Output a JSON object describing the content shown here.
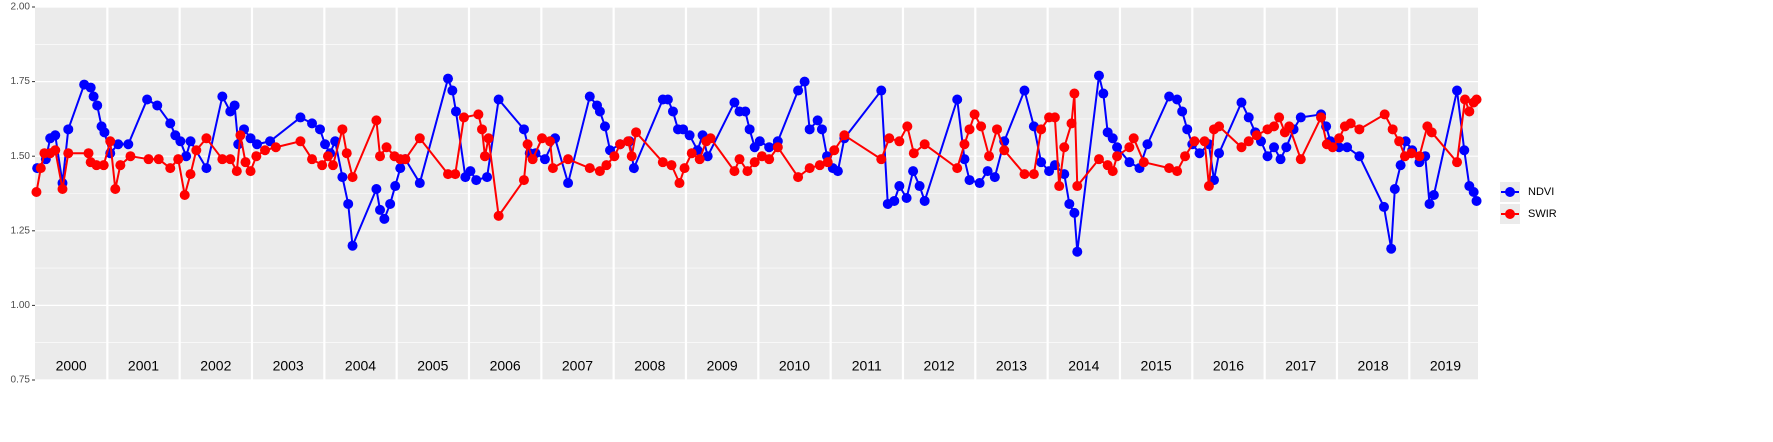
{
  "chart_data": {
    "type": "line",
    "xlim": [
      2000,
      2019.95
    ],
    "ylim": [
      0.75,
      2.0
    ],
    "yticks": [
      0.75,
      {
        "value": 1.0,
        "label": "1.00"
      },
      1.25,
      {
        "value": 1.5,
        "label": "1.50"
      },
      1.75,
      {
        "value": 2.0,
        "label": "2.00"
      }
    ],
    "y_minor_grid": [
      0.875,
      1.125,
      1.375,
      1.625,
      1.875
    ],
    "x_grid": [
      2001,
      2002,
      2003,
      2004,
      2005,
      2006,
      2007,
      2008,
      2009,
      2010,
      2011,
      2012,
      2013,
      2014,
      2015,
      2016,
      2017,
      2018,
      2019
    ],
    "xticks": [
      {
        "value": 2000.5,
        "label": "2000"
      },
      {
        "value": 2001.5,
        "label": "2001"
      },
      {
        "value": 2002.5,
        "label": "2002"
      },
      {
        "value": 2003.5,
        "label": "2003"
      },
      {
        "value": 2004.5,
        "label": "2004"
      },
      {
        "value": 2005.5,
        "label": "2005"
      },
      {
        "value": 2006.5,
        "label": "2006"
      },
      {
        "value": 2007.5,
        "label": "2007"
      },
      {
        "value": 2008.5,
        "label": "2008"
      },
      {
        "value": 2009.5,
        "label": "2009"
      },
      {
        "value": 2010.5,
        "label": "2010"
      },
      {
        "value": 2011.5,
        "label": "2011"
      },
      {
        "value": 2012.5,
        "label": "2012"
      },
      {
        "value": 2013.5,
        "label": "2013"
      },
      {
        "value": 2014.5,
        "label": "2014"
      },
      {
        "value": 2015.5,
        "label": "2015"
      },
      {
        "value": 2016.5,
        "label": "2016"
      },
      {
        "value": 2017.5,
        "label": "2017"
      },
      {
        "value": 2018.5,
        "label": "2018"
      },
      {
        "value": 2019.5,
        "label": "2019"
      }
    ],
    "grid": true,
    "legend": "right",
    "series": [
      {
        "name": "NDVI",
        "color": "#0000ff",
        "x": [
          2000.03,
          2000.15,
          2000.21,
          2000.28,
          2000.38,
          2000.46,
          2000.68,
          2000.77,
          2000.81,
          2000.86,
          2000.92,
          2000.96,
          2001.04,
          2001.15,
          2001.29,
          2001.55,
          2001.69,
          2001.87,
          2001.94,
          2002.01,
          2002.09,
          2002.15,
          2002.37,
          2002.59,
          2002.7,
          2002.76,
          2002.81,
          2002.89,
          2002.98,
          2003.07,
          2003.25,
          2003.67,
          2003.83,
          2003.94,
          2004.01,
          2004.08,
          2004.15,
          2004.25,
          2004.33,
          2004.39,
          2004.72,
          2004.77,
          2004.83,
          2004.91,
          2004.98,
          2005.05,
          2005.12,
          2005.32,
          2005.71,
          2005.77,
          2005.82,
          2005.95,
          2006.02,
          2006.1,
          2006.25,
          2006.41,
          2006.76,
          2006.84,
          2006.92,
          2007.05,
          2007.19,
          2007.37,
          2007.67,
          2007.77,
          2007.81,
          2007.88,
          2007.95,
          2008.09,
          2008.22,
          2008.28,
          2008.68,
          2008.75,
          2008.82,
          2008.89,
          2008.96,
          2009.05,
          2009.16,
          2009.23,
          2009.3,
          2009.67,
          2009.74,
          2009.82,
          2009.88,
          2009.95,
          2010.02,
          2010.15,
          2010.27,
          2010.55,
          2010.64,
          2010.71,
          2010.82,
          2010.88,
          2010.95,
          2011.03,
          2011.1,
          2011.19,
          2011.7,
          2011.79,
          2011.88,
          2011.95,
          2012.05,
          2012.14,
          2012.23,
          2012.3,
          2012.75,
          2012.85,
          2012.92,
          2013.06,
          2013.17,
          2013.27,
          2013.4,
          2013.68,
          2013.81,
          2013.91,
          2014.02,
          2014.1,
          2014.23,
          2014.3,
          2014.37,
          2014.41,
          2014.71,
          2014.77,
          2014.83,
          2014.9,
          2014.96,
          2015.13,
          2015.27,
          2015.38,
          2015.68,
          2015.79,
          2015.86,
          2015.93,
          2016.0,
          2016.1,
          2016.23,
          2016.3,
          2016.37,
          2016.68,
          2016.78,
          2016.87,
          2016.95,
          2017.04,
          2017.13,
          2017.22,
          2017.3,
          2017.4,
          2017.5,
          2017.78,
          2017.85,
          2017.91,
          2018.03,
          2018.14,
          2018.31,
          2018.65,
          2018.75,
          2018.8,
          2018.88,
          2018.95,
          2019.04,
          2019.14,
          2019.22,
          2019.28,
          2019.34,
          2019.66,
          2019.76,
          2019.83,
          2019.89,
          2019.93
        ],
        "values": [
          1.46,
          1.49,
          1.56,
          1.57,
          1.41,
          1.59,
          1.74,
          1.73,
          1.7,
          1.67,
          1.6,
          1.58,
          1.51,
          1.54,
          1.54,
          1.69,
          1.67,
          1.61,
          1.57,
          1.55,
          1.5,
          1.55,
          1.46,
          1.7,
          1.65,
          1.67,
          1.54,
          1.59,
          1.56,
          1.54,
          1.55,
          1.63,
          1.61,
          1.59,
          1.54,
          1.51,
          1.55,
          1.43,
          1.34,
          1.2,
          1.39,
          1.32,
          1.29,
          1.34,
          1.4,
          1.46,
          1.49,
          1.41,
          1.76,
          1.72,
          1.65,
          1.43,
          1.45,
          1.42,
          1.43,
          1.69,
          1.59,
          1.51,
          1.51,
          1.49,
          1.56,
          1.41,
          1.7,
          1.67,
          1.65,
          1.6,
          1.52,
          1.54,
          1.55,
          1.46,
          1.69,
          1.69,
          1.65,
          1.59,
          1.59,
          1.57,
          1.52,
          1.57,
          1.5,
          1.68,
          1.65,
          1.65,
          1.59,
          1.53,
          1.55,
          1.53,
          1.55,
          1.72,
          1.75,
          1.59,
          1.62,
          1.59,
          1.5,
          1.46,
          1.45,
          1.56,
          1.72,
          1.34,
          1.35,
          1.4,
          1.36,
          1.45,
          1.4,
          1.35,
          1.69,
          1.49,
          1.42,
          1.41,
          1.45,
          1.43,
          1.55,
          1.72,
          1.6,
          1.48,
          1.45,
          1.47,
          1.44,
          1.34,
          1.31,
          1.18,
          1.77,
          1.71,
          1.58,
          1.56,
          1.53,
          1.48,
          1.46,
          1.54,
          1.7,
          1.69,
          1.65,
          1.59,
          1.54,
          1.51,
          1.54,
          1.42,
          1.51,
          1.68,
          1.63,
          1.58,
          1.55,
          1.5,
          1.53,
          1.49,
          1.53,
          1.59,
          1.63,
          1.64,
          1.6,
          1.55,
          1.53,
          1.53,
          1.5,
          1.33,
          1.19,
          1.39,
          1.47,
          1.55,
          1.52,
          1.48,
          1.5,
          1.34,
          1.37,
          1.72,
          1.52,
          1.4,
          1.38,
          1.35
        ]
      },
      {
        "name": "SWIR",
        "color": "#ff0000",
        "x": [
          2000.02,
          2000.08,
          2000.13,
          2000.21,
          2000.28,
          2000.38,
          2000.46,
          2000.74,
          2000.77,
          2000.85,
          2000.95,
          2001.04,
          2001.11,
          2001.18,
          2001.32,
          2001.57,
          2001.71,
          2001.87,
          2001.98,
          2002.07,
          2002.15,
          2002.23,
          2002.37,
          2002.59,
          2002.7,
          2002.79,
          2002.84,
          2002.91,
          2002.98,
          2003.06,
          2003.18,
          2003.33,
          2003.67,
          2003.83,
          2003.97,
          2004.05,
          2004.12,
          2004.25,
          2004.31,
          2004.39,
          2004.72,
          2004.77,
          2004.86,
          2004.97,
          2005.05,
          2005.12,
          2005.32,
          2005.71,
          2005.81,
          2005.93,
          2006.13,
          2006.18,
          2006.22,
          2006.27,
          2006.41,
          2006.76,
          2006.81,
          2006.88,
          2007.01,
          2007.12,
          2007.16,
          2007.37,
          2007.67,
          2007.81,
          2007.9,
          2008.01,
          2008.09,
          2008.2,
          2008.25,
          2008.31,
          2008.68,
          2008.8,
          2008.91,
          2008.98,
          2009.08,
          2009.19,
          2009.28,
          2009.34,
          2009.67,
          2009.74,
          2009.85,
          2009.95,
          2010.05,
          2010.15,
          2010.27,
          2010.55,
          2010.71,
          2010.85,
          2010.96,
          2011.05,
          2011.19,
          2011.7,
          2011.81,
          2011.95,
          2012.06,
          2012.15,
          2012.3,
          2012.75,
          2012.85,
          2012.92,
          2012.99,
          2013.08,
          2013.19,
          2013.3,
          2013.4,
          2013.68,
          2013.81,
          2013.91,
          2014.02,
          2014.1,
          2014.16,
          2014.23,
          2014.33,
          2014.37,
          2014.41,
          2014.71,
          2014.83,
          2014.9,
          2014.96,
          2015.13,
          2015.19,
          2015.33,
          2015.68,
          2015.79,
          2015.9,
          2016.03,
          2016.17,
          2016.23,
          2016.3,
          2016.37,
          2016.68,
          2016.78,
          2016.89,
          2017.04,
          2017.13,
          2017.2,
          2017.28,
          2017.34,
          2017.5,
          2017.78,
          2017.86,
          2017.94,
          2018.03,
          2018.11,
          2018.19,
          2018.31,
          2018.66,
          2018.77,
          2018.86,
          2018.94,
          2019.03,
          2019.14,
          2019.25,
          2019.31,
          2019.66,
          2019.77,
          2019.83,
          2019.89,
          2019.93
        ],
        "values": [
          1.38,
          1.46,
          1.51,
          1.51,
          1.52,
          1.39,
          1.51,
          1.51,
          1.48,
          1.47,
          1.47,
          1.55,
          1.39,
          1.47,
          1.5,
          1.49,
          1.49,
          1.46,
          1.49,
          1.37,
          1.44,
          1.52,
          1.56,
          1.49,
          1.49,
          1.45,
          1.57,
          1.48,
          1.45,
          1.5,
          1.52,
          1.53,
          1.55,
          1.49,
          1.47,
          1.5,
          1.47,
          1.59,
          1.51,
          1.43,
          1.62,
          1.5,
          1.53,
          1.5,
          1.49,
          1.49,
          1.56,
          1.44,
          1.44,
          1.63,
          1.64,
          1.59,
          1.5,
          1.56,
          1.3,
          1.42,
          1.54,
          1.49,
          1.56,
          1.55,
          1.46,
          1.49,
          1.46,
          1.45,
          1.47,
          1.5,
          1.54,
          1.55,
          1.5,
          1.58,
          1.48,
          1.47,
          1.41,
          1.46,
          1.51,
          1.49,
          1.55,
          1.56,
          1.45,
          1.49,
          1.45,
          1.48,
          1.5,
          1.49,
          1.53,
          1.43,
          1.46,
          1.47,
          1.48,
          1.52,
          1.57,
          1.49,
          1.56,
          1.55,
          1.6,
          1.51,
          1.54,
          1.46,
          1.54,
          1.59,
          1.64,
          1.6,
          1.5,
          1.59,
          1.52,
          1.44,
          1.44,
          1.59,
          1.63,
          1.63,
          1.4,
          1.53,
          1.61,
          1.71,
          1.4,
          1.49,
          1.47,
          1.45,
          1.5,
          1.53,
          1.56,
          1.48,
          1.46,
          1.45,
          1.5,
          1.55,
          1.55,
          1.4,
          1.59,
          1.6,
          1.53,
          1.55,
          1.57,
          1.59,
          1.6,
          1.63,
          1.58,
          1.6,
          1.49,
          1.63,
          1.54,
          1.53,
          1.56,
          1.6,
          1.61,
          1.59,
          1.64,
          1.59,
          1.55,
          1.5,
          1.51,
          1.5,
          1.6,
          1.58,
          1.48,
          1.69,
          1.65,
          1.68,
          1.69
        ]
      }
    ]
  }
}
